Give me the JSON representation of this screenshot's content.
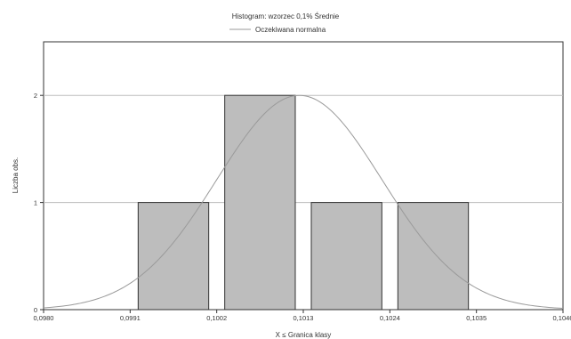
{
  "chart_data": {
    "type": "bar",
    "title": "Histogram: wzorzec 0,1%  Średnie",
    "legend": {
      "entries": [
        "Oczekiwana normalna"
      ],
      "placement": "top-center"
    },
    "xlabel": "X ≤ Granica klasy",
    "ylabel": "Liczba obs.",
    "xlim": [
      0.098,
      0.1046
    ],
    "ylim": [
      0,
      2.5
    ],
    "x_ticks": [
      "0,0980",
      "0,0991",
      "0,1002",
      "0,1013",
      "0,1024",
      "0,1035",
      "0,1046"
    ],
    "y_ticks": [
      "0",
      "1",
      "2"
    ],
    "grid": "horizontal",
    "bins": [
      {
        "lower": 0.0991,
        "upper": 0.1002,
        "value": 1
      },
      {
        "lower": 0.1002,
        "upper": 0.1013,
        "value": 2
      },
      {
        "lower": 0.1013,
        "upper": 0.1024,
        "value": 1
      },
      {
        "lower": 0.1024,
        "upper": 0.1035,
        "value": 1
      }
    ],
    "normal_curve": {
      "mean": 0.10125,
      "sd": 0.00105,
      "peak": 2
    },
    "colors": {
      "bar_fill": "#bdbdbd",
      "bar_stroke": "#333333",
      "curve": "#9a9a9a",
      "grid": "#bdbdbd"
    }
  }
}
